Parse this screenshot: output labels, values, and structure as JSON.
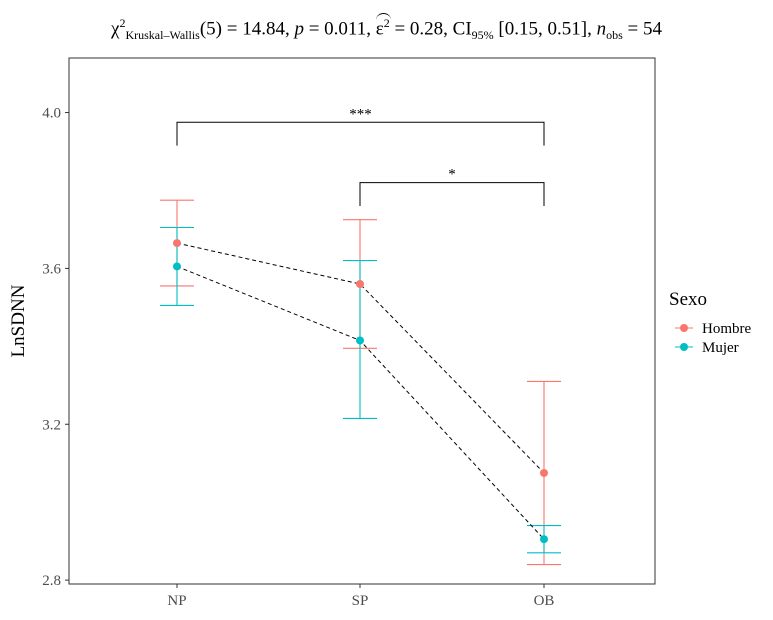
{
  "stats": {
    "chi_symbol": "χ",
    "chi_sup": "2",
    "chi_sub": "Kruskal–Wallis",
    "df": "(5)",
    "stat_value": "= 14.84,",
    "p_label": "p",
    "p_value": "= 0.011,",
    "eps_symbol": "ε",
    "eps_sup": "2",
    "eps_value": "= 0.28,",
    "ci_label": "CI",
    "ci_sub": "95%",
    "ci_value": "[0.15, 0.51],",
    "n_label": "n",
    "n_sub": "obs",
    "n_value": "= 54"
  },
  "chart_data": {
    "type": "line",
    "ylabel": "LnSDNN",
    "ylim": [
      2.79,
      4.14
    ],
    "yticks": [
      2.8,
      3.2,
      3.6,
      4.0
    ],
    "ytick_labels": [
      "2.8",
      "3.2",
      "3.6",
      "4.0"
    ],
    "categories": [
      "NP",
      "SP",
      "OB"
    ],
    "grid": false,
    "legend": {
      "title": "Sexo",
      "placement": "right"
    },
    "series": [
      {
        "name": "Hombre",
        "color": "#F8766D",
        "values": [
          3.665,
          3.56,
          3.075
        ],
        "lower": [
          3.555,
          3.395,
          2.84
        ],
        "upper": [
          3.775,
          3.725,
          3.31
        ]
      },
      {
        "name": "Mujer",
        "color": "#00BFC4",
        "values": [
          3.605,
          3.415,
          2.905
        ],
        "lower": [
          3.505,
          3.215,
          2.87
        ],
        "upper": [
          3.705,
          3.62,
          2.94
        ]
      }
    ],
    "significance": [
      {
        "from": "NP",
        "to": "OB",
        "label": "***",
        "y": 3.975,
        "drop": 3.915
      },
      {
        "from": "SP",
        "to": "OB",
        "label": "*",
        "y": 3.82,
        "drop": 3.76
      }
    ]
  }
}
